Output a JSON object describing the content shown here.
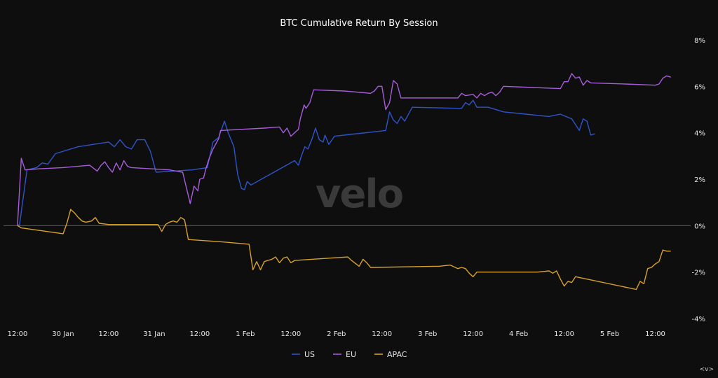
{
  "watermark": "velo",
  "nav_arrows": "<v>",
  "chart_data": {
    "type": "line",
    "title": "BTC Cumulative Return By Session",
    "xlabel": "",
    "ylabel": "",
    "x_unit": "hours since 29 Jan 12:00",
    "xlim": [
      0,
      174
    ],
    "ylim": [
      -4,
      8
    ],
    "y_ticks": [
      8,
      6,
      4,
      2,
      0,
      -2,
      -4
    ],
    "y_tick_labels": [
      "8%",
      "6%",
      "4%",
      "2%",
      "0%",
      "-2%",
      "-4%"
    ],
    "x_ticks": [
      0,
      12,
      24,
      36,
      48,
      60,
      72,
      84,
      96,
      108,
      120,
      132,
      144,
      156,
      168
    ],
    "x_tick_labels": [
      "12:00",
      "30 Jan",
      "12:00",
      "31 Jan",
      "12:00",
      "1 Feb",
      "12:00",
      "2 Feb",
      "12:00",
      "3 Feb",
      "12:00",
      "4 Feb",
      "12:00",
      "5 Feb",
      "12:00"
    ],
    "legend_position": "bottom-center",
    "grid": false,
    "zero_line": true,
    "series": [
      {
        "name": "US",
        "color": "#2f54c9",
        "points": [
          [
            0,
            0.05
          ],
          [
            0.5,
            0
          ],
          [
            2.5,
            2.4
          ],
          [
            5,
            2.5
          ],
          [
            6.5,
            2.7
          ],
          [
            8,
            2.65
          ],
          [
            10,
            3.1
          ],
          [
            16,
            3.4
          ],
          [
            24,
            3.6
          ],
          [
            25.5,
            3.4
          ],
          [
            27,
            3.7
          ],
          [
            28.5,
            3.4
          ],
          [
            30,
            3.3
          ],
          [
            31.5,
            3.7
          ],
          [
            33.5,
            3.7
          ],
          [
            35,
            3.2
          ],
          [
            36.5,
            2.3
          ],
          [
            46,
            2.4
          ],
          [
            50,
            2.5
          ],
          [
            51.5,
            3.6
          ],
          [
            53,
            3.8
          ],
          [
            54.5,
            4.5
          ],
          [
            55.5,
            4.0
          ],
          [
            57,
            3.4
          ],
          [
            58,
            2.2
          ],
          [
            59,
            1.6
          ],
          [
            59.8,
            1.55
          ],
          [
            60.5,
            1.9
          ],
          [
            61.5,
            1.75
          ],
          [
            73,
            2.8
          ],
          [
            74,
            2.6
          ],
          [
            75,
            3.1
          ],
          [
            75.7,
            3.4
          ],
          [
            76.5,
            3.3
          ],
          [
            77.5,
            3.7
          ],
          [
            78.5,
            4.2
          ],
          [
            79.5,
            3.7
          ],
          [
            80.5,
            3.6
          ],
          [
            81,
            3.9
          ],
          [
            82,
            3.5
          ],
          [
            83.5,
            3.85
          ],
          [
            97,
            4.1
          ],
          [
            98,
            4.9
          ],
          [
            99,
            4.55
          ],
          [
            100,
            4.4
          ],
          [
            101,
            4.7
          ],
          [
            102,
            4.5
          ],
          [
            103,
            4.8
          ],
          [
            104,
            5.1
          ],
          [
            117,
            5.05
          ],
          [
            118,
            5.3
          ],
          [
            119,
            5.2
          ],
          [
            120,
            5.4
          ],
          [
            121,
            5.1
          ],
          [
            124,
            5.1
          ],
          [
            128,
            4.9
          ],
          [
            140,
            4.7
          ],
          [
            143,
            4.8
          ],
          [
            146,
            4.6
          ],
          [
            148,
            4.1
          ],
          [
            149,
            4.6
          ],
          [
            150,
            4.5
          ],
          [
            151,
            3.9
          ],
          [
            152,
            3.95
          ]
        ]
      },
      {
        "name": "EU",
        "color": "#a75ddb",
        "points": [
          [
            0,
            0.05
          ],
          [
            1,
            2.9
          ],
          [
            2,
            2.4
          ],
          [
            6,
            2.45
          ],
          [
            12,
            2.5
          ],
          [
            19,
            2.6
          ],
          [
            21,
            2.35
          ],
          [
            22,
            2.6
          ],
          [
            23,
            2.75
          ],
          [
            24,
            2.5
          ],
          [
            25,
            2.3
          ],
          [
            26,
            2.7
          ],
          [
            27,
            2.4
          ],
          [
            28,
            2.8
          ],
          [
            29,
            2.55
          ],
          [
            30,
            2.5
          ],
          [
            40,
            2.4
          ],
          [
            43.5,
            2.3
          ],
          [
            45.5,
            0.95
          ],
          [
            46.5,
            1.7
          ],
          [
            47.5,
            1.5
          ],
          [
            48,
            2.0
          ],
          [
            49,
            2.05
          ],
          [
            49.7,
            2.5
          ],
          [
            50.5,
            2.9
          ],
          [
            51.5,
            3.3
          ],
          [
            53,
            3.75
          ],
          [
            53.5,
            4.1
          ],
          [
            65,
            4.2
          ],
          [
            69,
            4.25
          ],
          [
            70,
            4.0
          ],
          [
            71,
            4.2
          ],
          [
            72,
            3.85
          ],
          [
            74,
            4.15
          ],
          [
            74.5,
            4.6
          ],
          [
            75.5,
            5.2
          ],
          [
            76,
            5.05
          ],
          [
            77,
            5.3
          ],
          [
            78,
            5.85
          ],
          [
            86,
            5.8
          ],
          [
            93,
            5.7
          ],
          [
            94,
            5.8
          ],
          [
            95,
            6.0
          ],
          [
            96,
            6.0
          ],
          [
            97,
            5.0
          ],
          [
            98,
            5.3
          ],
          [
            99,
            6.25
          ],
          [
            100,
            6.1
          ],
          [
            101,
            5.5
          ],
          [
            111,
            5.5
          ],
          [
            116,
            5.5
          ],
          [
            117,
            5.7
          ],
          [
            118,
            5.6
          ],
          [
            120,
            5.65
          ],
          [
            121,
            5.5
          ],
          [
            122,
            5.7
          ],
          [
            123,
            5.6
          ],
          [
            124,
            5.7
          ],
          [
            125,
            5.75
          ],
          [
            126,
            5.6
          ],
          [
            127,
            5.75
          ],
          [
            128,
            6.0
          ],
          [
            143,
            5.9
          ],
          [
            144,
            6.2
          ],
          [
            145,
            6.2
          ],
          [
            146,
            6.55
          ],
          [
            147,
            6.35
          ],
          [
            148,
            6.4
          ],
          [
            149,
            6.05
          ],
          [
            150,
            6.25
          ],
          [
            151,
            6.15
          ],
          [
            160,
            6.1
          ],
          [
            168,
            6.05
          ],
          [
            169,
            6.1
          ],
          [
            170,
            6.35
          ],
          [
            171,
            6.45
          ],
          [
            172,
            6.4
          ]
        ]
      },
      {
        "name": "APAC",
        "color": "#d7a12a",
        "points": [
          [
            0,
            0
          ],
          [
            1,
            -0.1
          ],
          [
            12,
            -0.35
          ],
          [
            13,
            0.1
          ],
          [
            14,
            0.7
          ],
          [
            15,
            0.55
          ],
          [
            16,
            0.35
          ],
          [
            17,
            0.2
          ],
          [
            18,
            0.15
          ],
          [
            19.5,
            0.2
          ],
          [
            20.5,
            0.35
          ],
          [
            21.5,
            0.1
          ],
          [
            24,
            0.05
          ],
          [
            34,
            0.05
          ],
          [
            37,
            0.05
          ],
          [
            38,
            -0.25
          ],
          [
            39,
            0.05
          ],
          [
            40,
            0.15
          ],
          [
            41,
            0.2
          ],
          [
            42,
            0.15
          ],
          [
            43,
            0.35
          ],
          [
            44,
            0.25
          ],
          [
            45,
            -0.6
          ],
          [
            54,
            -0.7
          ],
          [
            61,
            -0.8
          ],
          [
            62,
            -1.9
          ],
          [
            63,
            -1.55
          ],
          [
            64,
            -1.9
          ],
          [
            65,
            -1.55
          ],
          [
            67,
            -1.45
          ],
          [
            68,
            -1.35
          ],
          [
            69,
            -1.6
          ],
          [
            70,
            -1.4
          ],
          [
            71,
            -1.35
          ],
          [
            72,
            -1.6
          ],
          [
            73,
            -1.5
          ],
          [
            87,
            -1.35
          ],
          [
            88,
            -1.5
          ],
          [
            90,
            -1.75
          ],
          [
            91,
            -1.45
          ],
          [
            92,
            -1.6
          ],
          [
            93,
            -1.8
          ],
          [
            94,
            -1.8
          ],
          [
            110,
            -1.75
          ],
          [
            111,
            -1.75
          ],
          [
            114,
            -1.7
          ],
          [
            116,
            -1.85
          ],
          [
            117,
            -1.8
          ],
          [
            118,
            -1.85
          ],
          [
            119,
            -2.05
          ],
          [
            120,
            -2.2
          ],
          [
            121,
            -2.0
          ],
          [
            128,
            -2.0
          ],
          [
            137,
            -2.0
          ],
          [
            140,
            -1.95
          ],
          [
            141,
            -2.05
          ],
          [
            142,
            -1.95
          ],
          [
            143,
            -2.3
          ],
          [
            144,
            -2.6
          ],
          [
            145,
            -2.4
          ],
          [
            146,
            -2.45
          ],
          [
            147,
            -2.2
          ],
          [
            163,
            -2.75
          ],
          [
            164,
            -2.4
          ],
          [
            165,
            -2.5
          ],
          [
            166,
            -1.85
          ],
          [
            167,
            -1.8
          ],
          [
            168,
            -1.65
          ],
          [
            169,
            -1.55
          ],
          [
            170,
            -1.05
          ],
          [
            171,
            -1.1
          ],
          [
            172,
            -1.1
          ]
        ]
      }
    ]
  }
}
